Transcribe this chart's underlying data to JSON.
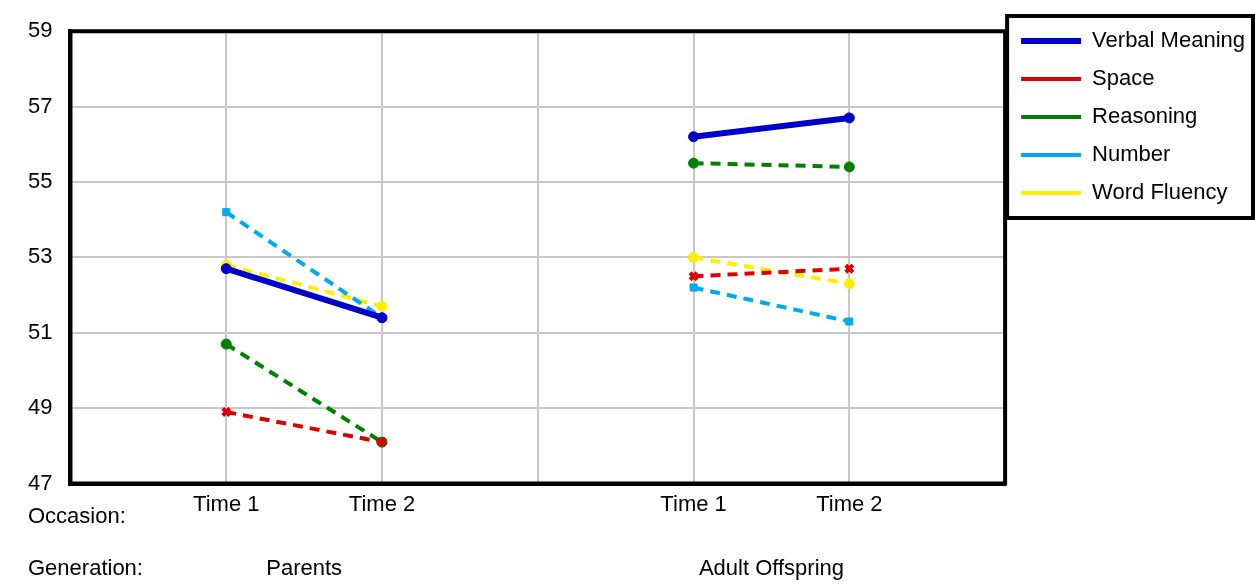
{
  "chart_data": {
    "type": "line",
    "categories": [
      null,
      "Time 1",
      "Time 2",
      null,
      "Time 1",
      "Time 2",
      null
    ],
    "ylim": [
      47,
      59
    ],
    "yticks": [
      47,
      49,
      51,
      53,
      55,
      57,
      59
    ],
    "grid": true,
    "legend": "top right",
    "series": [
      {
        "name": "Verbal Meaning",
        "color": "#0000cc",
        "marker": "circle",
        "line_style": "solid",
        "values": [
          null,
          52.7,
          51.4,
          null,
          56.2,
          56.7,
          null
        ]
      },
      {
        "name": "Space",
        "color": "#dd0000",
        "marker": "cross",
        "line_style": "dashed",
        "values": [
          null,
          48.9,
          48.1,
          null,
          52.5,
          52.7,
          null
        ]
      },
      {
        "name": "Reasoning",
        "color": "#008000",
        "marker": "circle",
        "line_style": "dashed",
        "values": [
          null,
          50.7,
          48.1,
          null,
          55.5,
          55.4,
          null
        ]
      },
      {
        "name": "Number",
        "color": "#00aaee",
        "marker": "square",
        "line_style": "dashed",
        "values": [
          null,
          54.2,
          51.4,
          null,
          52.2,
          51.3,
          null
        ]
      },
      {
        "name": "Word Fluency",
        "color": "#ffee00",
        "marker": "circle",
        "line_style": "dashed",
        "values": [
          null,
          52.8,
          51.7,
          null,
          53.0,
          52.3,
          null
        ]
      }
    ],
    "annotations": [
      "Occasion:",
      "Generation:",
      "Parents",
      "Adult Offspring"
    ]
  }
}
